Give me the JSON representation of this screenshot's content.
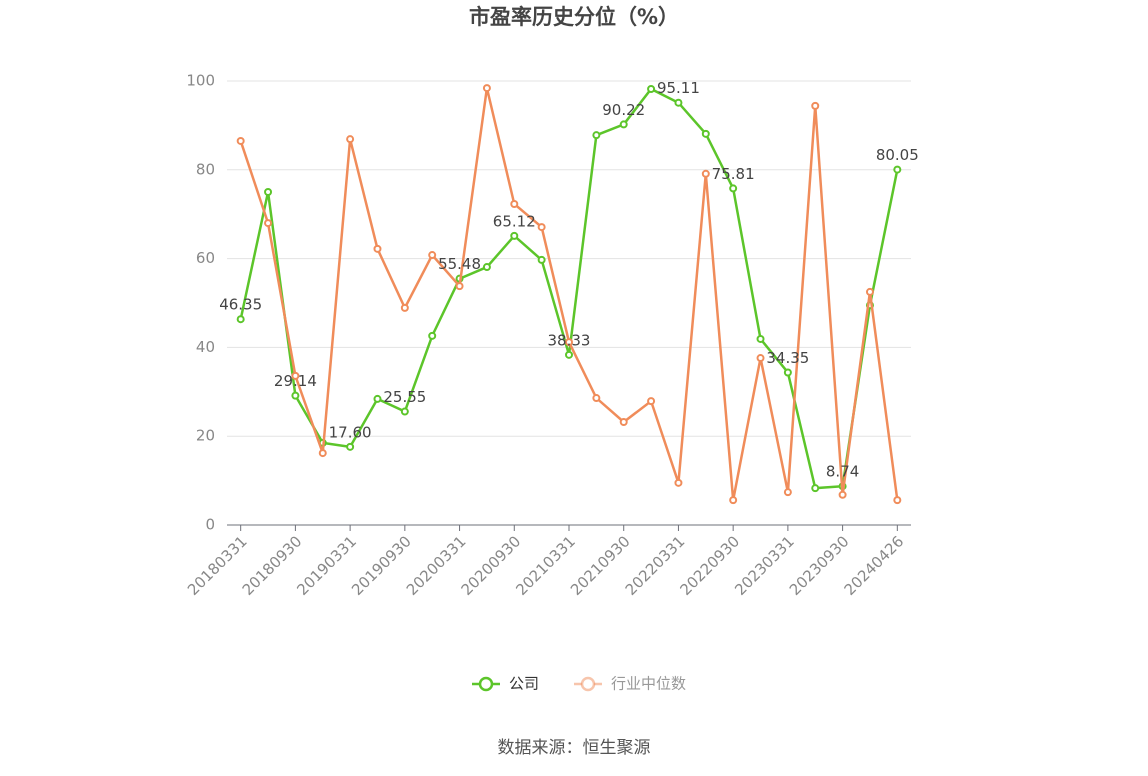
{
  "chart_data": {
    "type": "line",
    "title": "市盈率历史分位（%）",
    "categories": [
      "20180331",
      null,
      "20180930",
      null,
      "20190331",
      null,
      "20190930",
      null,
      "20200331",
      null,
      "20200930",
      null,
      "20210331",
      null,
      "20210930",
      null,
      "20220331",
      null,
      "20220930",
      null,
      "20230331",
      null,
      "20230930",
      null,
      "20240426"
    ],
    "series": [
      {
        "name": "公司",
        "color": "#5cc52a",
        "values": [
          46.35,
          75.0,
          29.14,
          18.5,
          17.6,
          28.4,
          25.55,
          42.6,
          55.48,
          58.1,
          65.12,
          59.7,
          38.33,
          87.8,
          90.22,
          98.2,
          95.11,
          88.1,
          75.81,
          41.9,
          34.35,
          8.3,
          8.74,
          49.5,
          80.05
        ],
        "value_labels": [
          "46.35",
          null,
          "29.14",
          null,
          "17.60",
          null,
          "25.55",
          null,
          "55.48",
          null,
          "65.12",
          null,
          "38.33",
          null,
          "90.22",
          null,
          "95.11",
          null,
          "75.81",
          null,
          "34.35",
          null,
          "8.74",
          null,
          "80.05"
        ]
      },
      {
        "name": "行业中位数",
        "color": "#f08c5a",
        "values": [
          86.5,
          68.0,
          33.6,
          16.2,
          86.9,
          62.2,
          48.9,
          60.8,
          53.8,
          98.4,
          72.3,
          67.1,
          41.2,
          28.6,
          23.2,
          27.9,
          9.5,
          79.1,
          5.6,
          37.6,
          7.4,
          94.4,
          6.8,
          52.5,
          5.6
        ]
      }
    ],
    "ylim": [
      0,
      100
    ],
    "yticks": [
      0,
      20,
      40,
      60,
      80,
      100
    ],
    "grid": true,
    "legend": "bottom",
    "source": "数据来源：恒生聚源"
  }
}
